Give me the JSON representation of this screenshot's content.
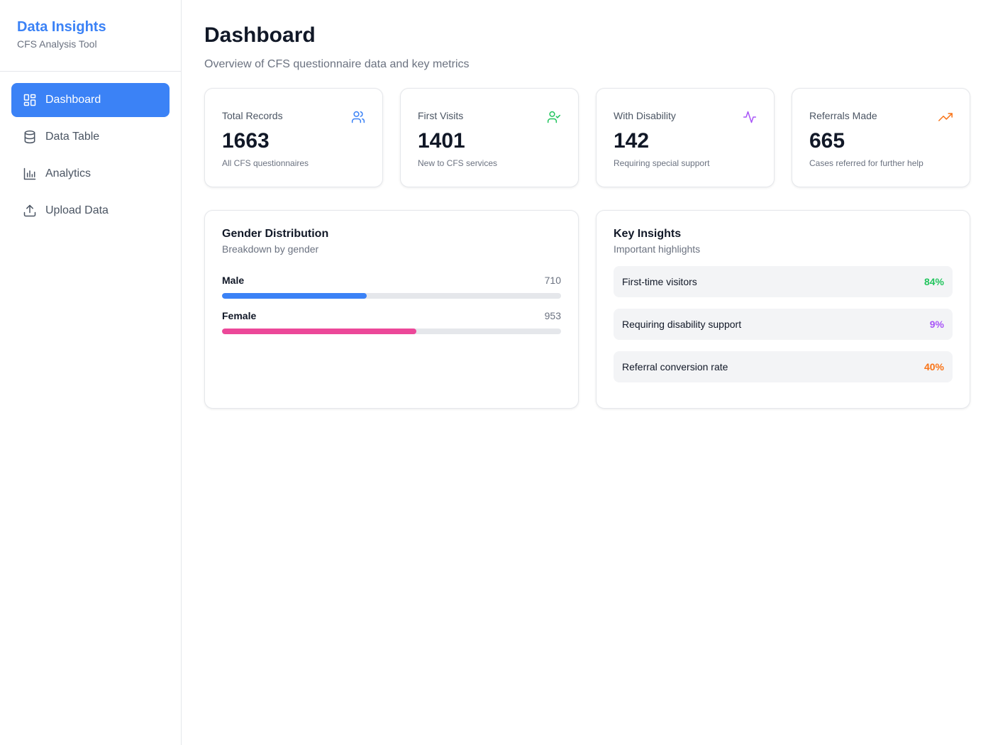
{
  "brand": {
    "title": "Data Insights",
    "subtitle": "CFS Analysis Tool"
  },
  "nav": [
    {
      "label": "Dashboard",
      "icon": "grid-icon",
      "active": true
    },
    {
      "label": "Data Table",
      "icon": "database-icon",
      "active": false
    },
    {
      "label": "Analytics",
      "icon": "bar-chart-icon",
      "active": false
    },
    {
      "label": "Upload Data",
      "icon": "upload-icon",
      "active": false
    }
  ],
  "header": {
    "title": "Dashboard",
    "subtitle": "Overview of CFS questionnaire data and key metrics"
  },
  "stats": [
    {
      "label": "Total Records",
      "value": "1663",
      "caption": "All CFS questionnaires",
      "icon": "users-icon",
      "color": "#3b82f6"
    },
    {
      "label": "First Visits",
      "value": "1401",
      "caption": "New to CFS services",
      "icon": "user-check-icon",
      "color": "#22c55e"
    },
    {
      "label": "With Disability",
      "value": "142",
      "caption": "Requiring special support",
      "icon": "activity-icon",
      "color": "#a855f7"
    },
    {
      "label": "Referrals Made",
      "value": "665",
      "caption": "Cases referred for further help",
      "icon": "trending-up-icon",
      "color": "#f97316"
    }
  ],
  "gender": {
    "title": "Gender Distribution",
    "subtitle": "Breakdown by gender",
    "rows": [
      {
        "name": "Male",
        "count": "710",
        "fraction": 0.427,
        "color": "#3b82f6"
      },
      {
        "name": "Female",
        "count": "953",
        "fraction": 0.573,
        "color": "#ec4899"
      }
    ]
  },
  "insights": {
    "title": "Key Insights",
    "subtitle": "Important highlights",
    "items": [
      {
        "label": "First-time visitors",
        "value": "84%",
        "color": "#22c55e"
      },
      {
        "label": "Requiring disability support",
        "value": "9%",
        "color": "#a855f7"
      },
      {
        "label": "Referral conversion rate",
        "value": "40%",
        "color": "#f97316"
      }
    ]
  }
}
